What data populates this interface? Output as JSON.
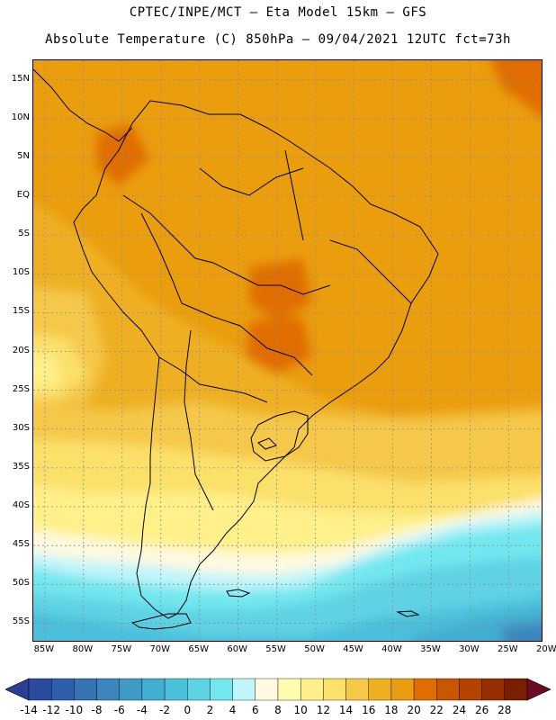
{
  "header": {
    "title_line1": "CPTEC/INPE/MCT – Eta Model 15km – GFS",
    "title_line2": "Absolute Temperature (C) 850hPa – 09/04/2021 12UTC fct=73h"
  },
  "map": {
    "lat_labels": [
      "15N",
      "10N",
      "5N",
      "EQ",
      "5S",
      "10S",
      "15S",
      "20S",
      "25S",
      "30S",
      "35S",
      "40S",
      "45S",
      "50S",
      "55S"
    ],
    "lat_values": [
      15,
      10,
      5,
      0,
      -5,
      -10,
      -15,
      -20,
      -25,
      -30,
      -35,
      -40,
      -45,
      -50,
      -55
    ],
    "lon_labels": [
      "85W",
      "80W",
      "75W",
      "70W",
      "65W",
      "60W",
      "55W",
      "50W",
      "45W",
      "40W",
      "35W",
      "30W",
      "25W",
      "20W"
    ],
    "lon_values": [
      -85,
      -80,
      -75,
      -70,
      -65,
      -60,
      -55,
      -50,
      -45,
      -40,
      -35,
      -30,
      -25,
      -20
    ],
    "lat_range": [
      -57.5,
      17.5
    ],
    "lon_range": [
      -86.5,
      -20.5
    ],
    "grid": "dotted",
    "gridline_color": "#8c8c8c",
    "coastline_color": "#000000"
  },
  "colorbar": {
    "labels": [
      "-14",
      "-12",
      "-10",
      "-8",
      "-6",
      "-4",
      "-2",
      "0",
      "2",
      "4",
      "6",
      "8",
      "10",
      "12",
      "14",
      "16",
      "18",
      "20",
      "22",
      "24",
      "26",
      "28"
    ],
    "colors": [
      "#2a4aa0",
      "#2e5fa8",
      "#3573b2",
      "#3c86bd",
      "#3f9ac6",
      "#42aed0",
      "#4bc0da",
      "#5ed3e3",
      "#72e7ef",
      "#bff5fb",
      "#fff9e0",
      "#fffbb0",
      "#fff08a",
      "#fbe06a",
      "#f5c848",
      "#eeb020",
      "#ea9d10",
      "#e06d00",
      "#c85500",
      "#b24400",
      "#952e00",
      "#7a1e00"
    ],
    "left_arrow_color": "#2b3f97",
    "right_arrow_color": "#6e0b23"
  }
}
